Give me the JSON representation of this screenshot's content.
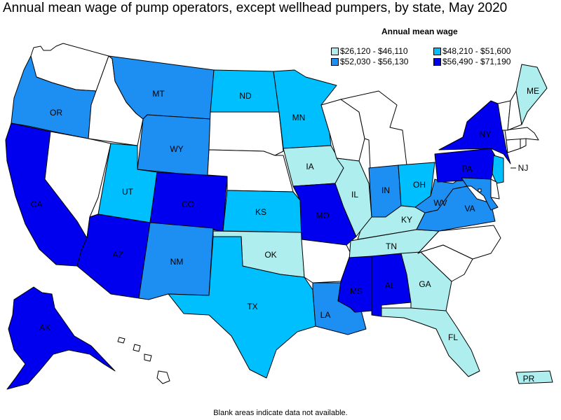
{
  "title": "Annual mean wage of pump operators, except wellhead pumpers, by state, May 2020",
  "legend": {
    "title": "Annual mean wage",
    "bins": [
      {
        "label": "$26,120 - $46,110",
        "color": "#aeeeee"
      },
      {
        "label": "$48,210 - $51,600",
        "color": "#00bfff"
      },
      {
        "label": "$52,030 - $56,130",
        "color": "#1e8ff2"
      },
      {
        "label": "$56,490 - $71,190",
        "color": "#0000ee"
      }
    ]
  },
  "footnote": "Blank areas indicate data not available.",
  "colors": {
    "no_data": "#ffffff",
    "border": "#000000"
  },
  "states": {
    "WA": {
      "bin": null
    },
    "OR": {
      "bin": 2,
      "label": "OR"
    },
    "CA": {
      "bin": 3,
      "label": "CA"
    },
    "ID": {
      "bin": null
    },
    "NV": {
      "bin": null
    },
    "MT": {
      "bin": 2,
      "label": "MT"
    },
    "WY": {
      "bin": 2,
      "label": "WY"
    },
    "UT": {
      "bin": 1,
      "label": "UT"
    },
    "CO": {
      "bin": 3,
      "label": "CO"
    },
    "AZ": {
      "bin": 3,
      "label": "AZ"
    },
    "NM": {
      "bin": 2,
      "label": "NM"
    },
    "ND": {
      "bin": 1,
      "label": "ND"
    },
    "SD": {
      "bin": null
    },
    "NE": {
      "bin": null
    },
    "KS": {
      "bin": 1,
      "label": "KS"
    },
    "OK": {
      "bin": 0,
      "label": "OK"
    },
    "TX": {
      "bin": 1,
      "label": "TX"
    },
    "MN": {
      "bin": 1,
      "label": "MN"
    },
    "IA": {
      "bin": 0,
      "label": "IA"
    },
    "MO": {
      "bin": 3,
      "label": "MO"
    },
    "AR": {
      "bin": null
    },
    "LA": {
      "bin": 2,
      "label": "LA"
    },
    "WI": {
      "bin": null
    },
    "IL": {
      "bin": 0,
      "label": "IL"
    },
    "MI": {
      "bin": null
    },
    "IN": {
      "bin": 2,
      "label": "IN"
    },
    "OH": {
      "bin": 1,
      "label": "OH"
    },
    "KY": {
      "bin": 0,
      "label": "KY"
    },
    "TN": {
      "bin": 0,
      "label": "TN"
    },
    "MS": {
      "bin": 3,
      "label": "MS"
    },
    "AL": {
      "bin": 3,
      "label": "AL"
    },
    "GA": {
      "bin": 0,
      "label": "GA"
    },
    "FL": {
      "bin": 0,
      "label": "FL"
    },
    "SC": {
      "bin": null
    },
    "NC": {
      "bin": null
    },
    "VA": {
      "bin": 2,
      "label": "VA"
    },
    "WV": {
      "bin": 2,
      "label": "WV"
    },
    "PA": {
      "bin": 3,
      "label": "PA"
    },
    "NY": {
      "bin": 3,
      "label": "NY"
    },
    "NJ": {
      "bin": 1,
      "label": "NJ"
    },
    "DE": {
      "bin": null
    },
    "MD": {
      "bin": 2
    },
    "DC": {
      "bin": null
    },
    "CT": {
      "bin": null
    },
    "RI": {
      "bin": null
    },
    "MA": {
      "bin": null
    },
    "VT": {
      "bin": null
    },
    "NH": {
      "bin": null
    },
    "ME": {
      "bin": 0,
      "label": "ME"
    },
    "AK": {
      "bin": 3,
      "label": "AK"
    },
    "HI": {
      "bin": null
    },
    "PR": {
      "bin": 0,
      "label": "PR"
    }
  }
}
